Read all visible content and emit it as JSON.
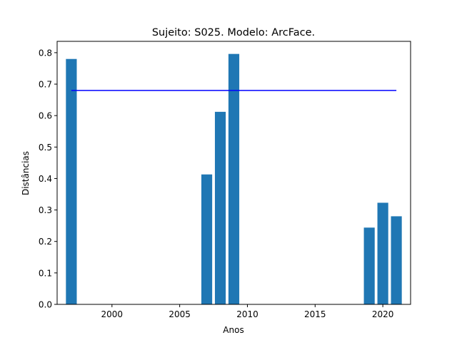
{
  "chart_data": {
    "type": "bar",
    "title": "Sujeito: S025. Modelo: ArcFace.",
    "xlabel": "Anos",
    "ylabel": "Distâncias",
    "x": [
      1997,
      2007,
      2008,
      2009,
      2019,
      2020,
      2021
    ],
    "values": [
      0.78,
      0.413,
      0.612,
      0.796,
      0.244,
      0.323,
      0.28
    ],
    "threshold": {
      "value": 0.68,
      "x_start": 1997,
      "x_end": 2021,
      "color": "#0000ff"
    },
    "bar_color": "#1f77b4",
    "xlim": [
      1995.95,
      2022.05
    ],
    "ylim": [
      0,
      0.836
    ],
    "xticks": [
      2000,
      2005,
      2010,
      2015,
      2020
    ],
    "yticks": [
      0.0,
      0.1,
      0.2,
      0.3,
      0.4,
      0.5,
      0.6,
      0.7,
      0.8
    ],
    "ytick_labels": [
      "0.0",
      "0.1",
      "0.2",
      "0.3",
      "0.4",
      "0.5",
      "0.6",
      "0.7",
      "0.8"
    ],
    "grid": false,
    "legend": false
  }
}
